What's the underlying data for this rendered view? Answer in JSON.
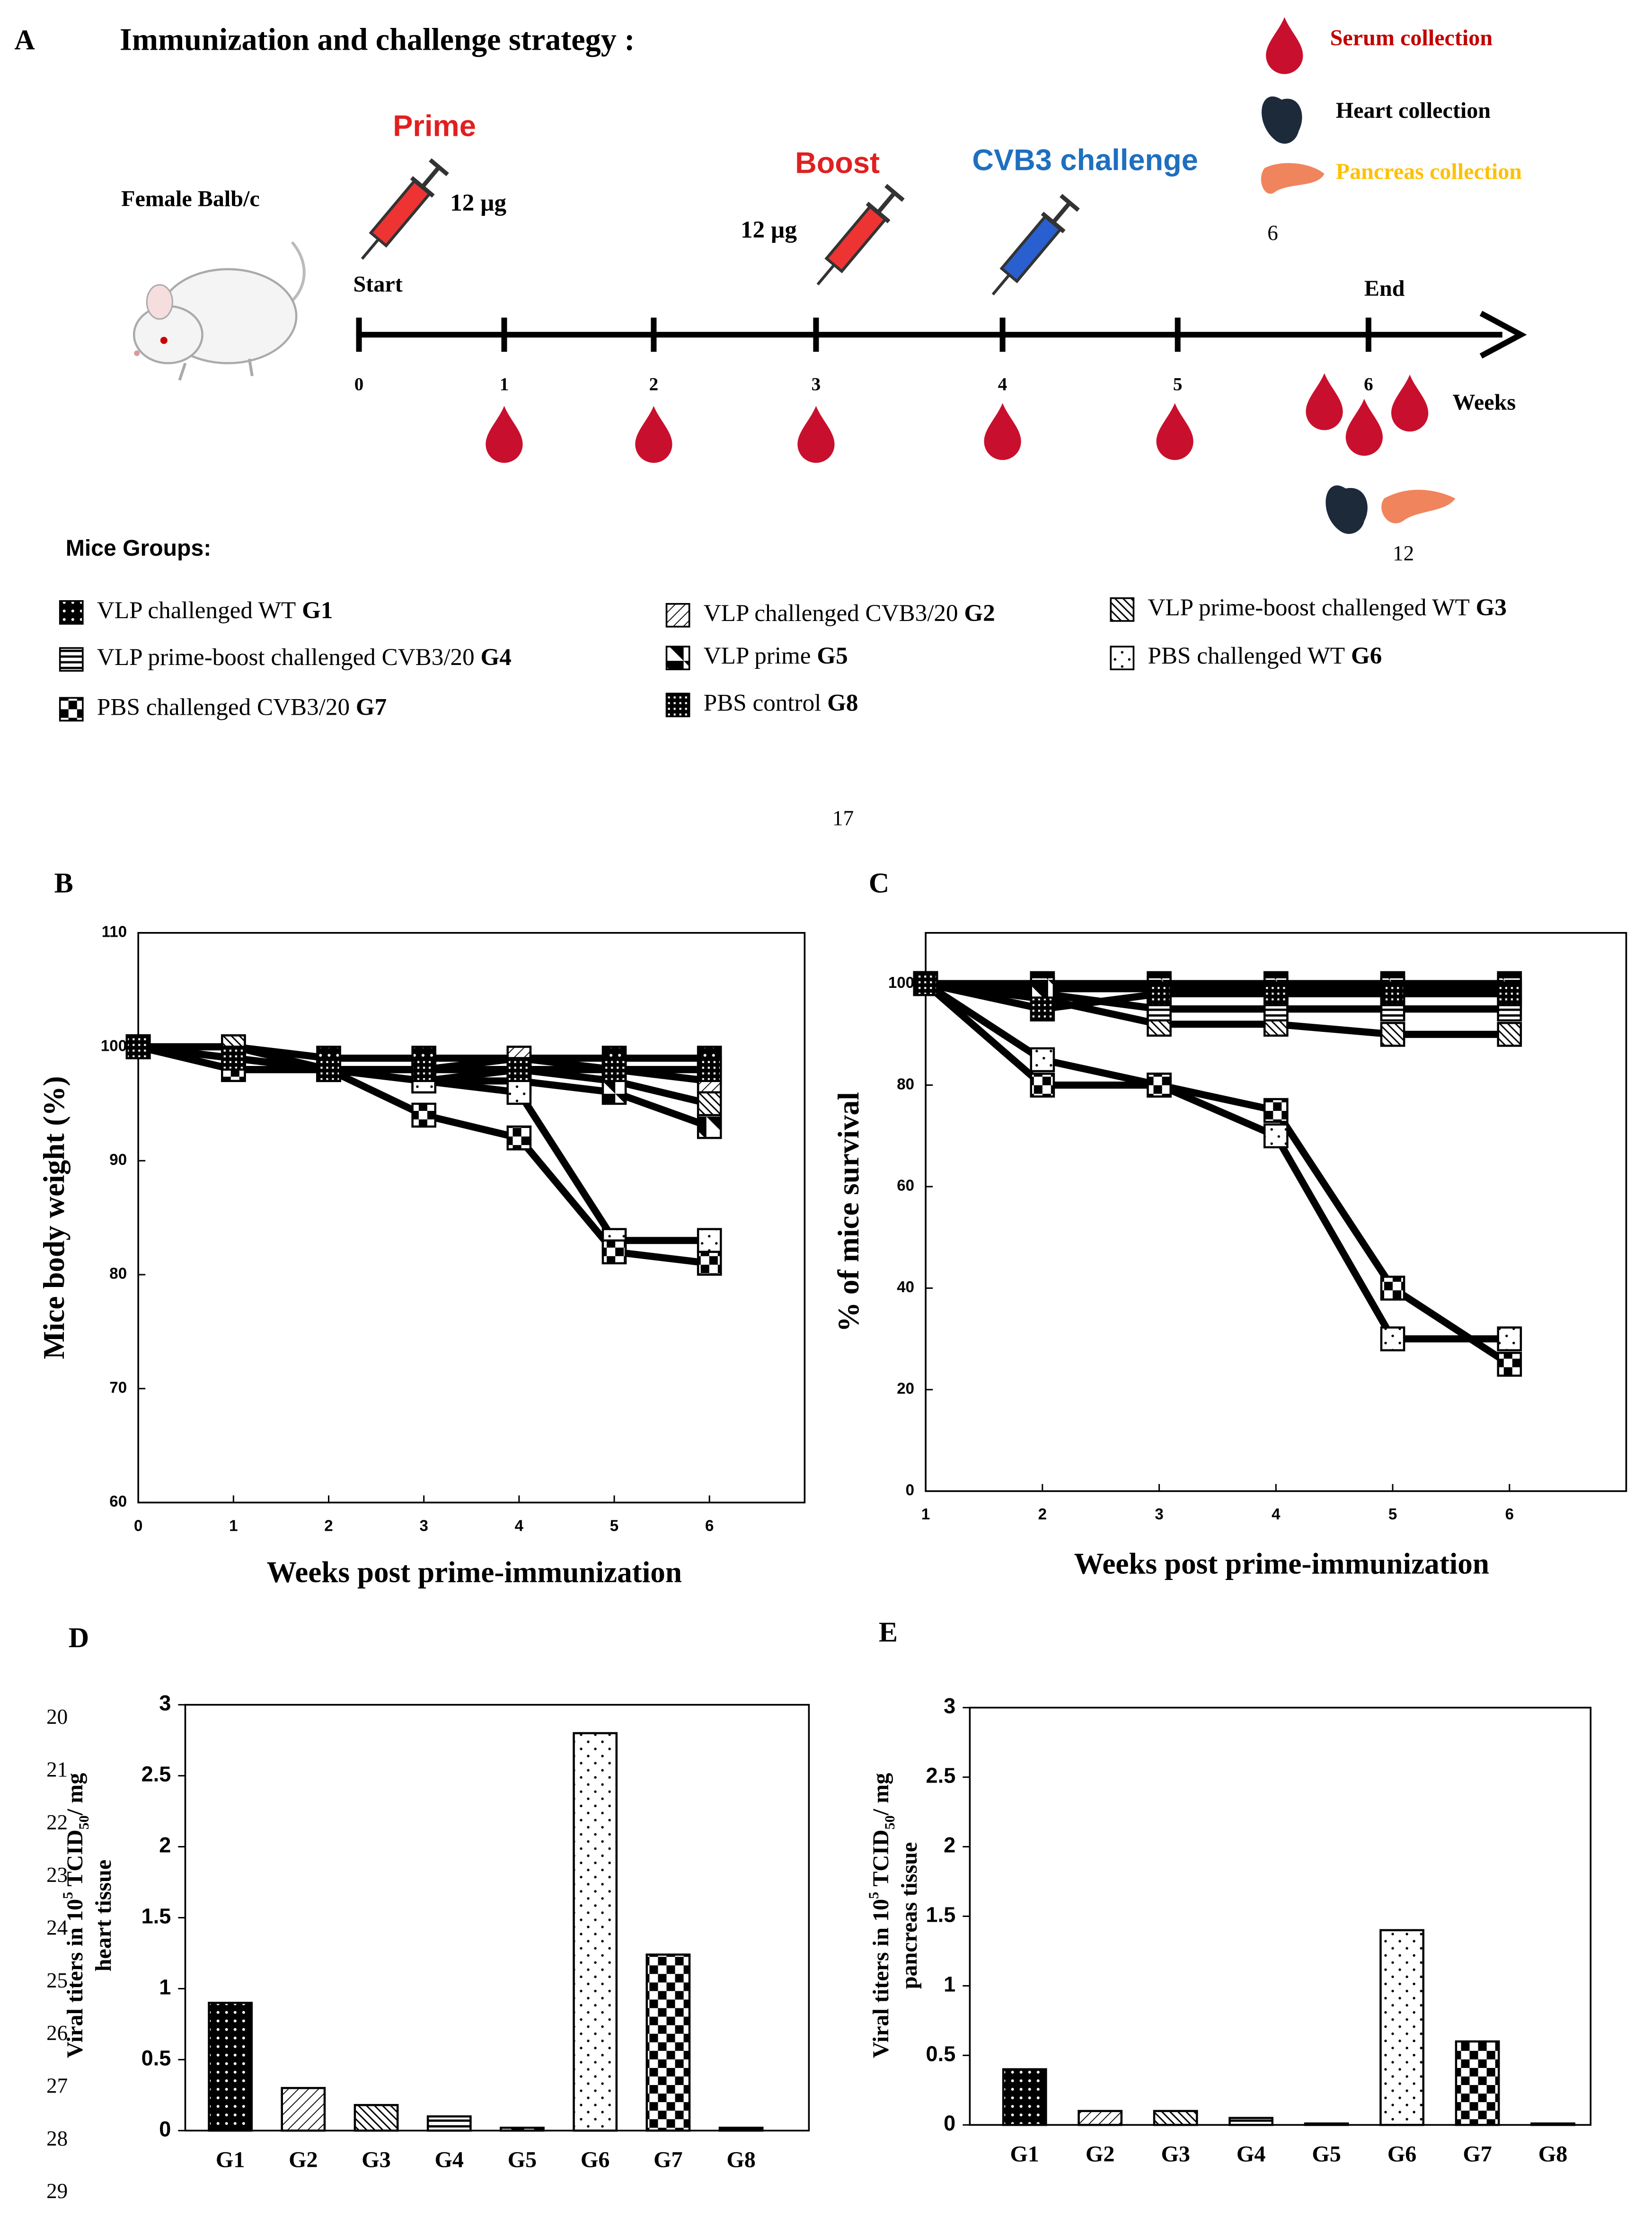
{
  "figure_a": {
    "label": "A",
    "title": "Immunization and challenge strategy :",
    "key": [
      "Serum collection",
      "Heart collection",
      "Pancreas collection"
    ],
    "key_note": "6",
    "strain": "Female Balb/c",
    "prime": {
      "label": "Prime",
      "dose": "12 µg"
    },
    "boost": {
      "label": "Boost",
      "dose": "12 µg"
    },
    "challenge": "CVB3 challenge",
    "start": "Start",
    "end": "End",
    "weeks": [
      0,
      1,
      2,
      3,
      4,
      5,
      6
    ],
    "weeks_label": "Weeks",
    "collection_note": "12",
    "groups_title": "Mice Groups:",
    "groups": [
      {
        "label": "VLP challenged WT",
        "id": "G1"
      },
      {
        "label": "VLP challenged CVB3/20",
        "id": "G2"
      },
      {
        "label": "VLP prime-boost challenged WT",
        "id": "G3"
      },
      {
        "label": "VLP prime-boost challenged CVB3/20",
        "id": "G4"
      },
      {
        "label": "VLP prime",
        "id": "G5"
      },
      {
        "label": "PBS challenged WT",
        "id": "G6"
      },
      {
        "label": "PBS challenged CVB3/20",
        "id": "G7"
      },
      {
        "label": "PBS control",
        "id": "G8"
      }
    ]
  },
  "page_number": "17",
  "line_numbers": [
    "20",
    "21",
    "22",
    "23",
    "24",
    "25",
    "26",
    "27",
    "28",
    "29"
  ],
  "chart_data": [
    {
      "type": "line",
      "label": "B",
      "xlabel": "Weeks post prime-immunization",
      "ylabel": "Mice body weight (%)",
      "x": [
        0,
        1,
        2,
        3,
        4,
        5,
        6
      ],
      "xlim": [
        0,
        7
      ],
      "xticks": [
        0,
        1,
        2,
        3,
        4,
        5,
        6
      ],
      "ylim": [
        60,
        110
      ],
      "yticks": [
        60,
        70,
        80,
        90,
        100,
        110
      ],
      "series": [
        {
          "color": "#000000",
          "values": [
            100,
            100,
            99,
            99,
            99,
            99,
            99
          ]
        },
        {
          "color": "#000000",
          "values": [
            100,
            99,
            98,
            98,
            99,
            98,
            97
          ]
        },
        {
          "color": "#000000",
          "values": [
            100,
            100,
            98,
            98,
            98,
            97,
            95
          ]
        },
        {
          "color": "#000000",
          "values": [
            100,
            99,
            98,
            97,
            98,
            98,
            98
          ]
        },
        {
          "color": "#000000",
          "values": [
            100,
            99,
            98,
            97,
            97,
            96,
            93
          ]
        },
        {
          "color": "#000000",
          "values": [
            100,
            98,
            98,
            97,
            96,
            83,
            83
          ]
        },
        {
          "color": "#000000",
          "values": [
            100,
            98,
            98,
            94,
            92,
            82,
            81
          ]
        },
        {
          "color": "#000000",
          "values": [
            100,
            99,
            98,
            98,
            98,
            98,
            98
          ]
        }
      ]
    },
    {
      "type": "line",
      "label": "C",
      "xlabel": "Weeks post prime-immunization",
      "ylabel": "% of mice survival",
      "x": [
        1,
        2,
        3,
        4,
        5,
        6
      ],
      "xlim": [
        1,
        7
      ],
      "xticks": [
        1,
        2,
        3,
        4,
        5,
        6
      ],
      "ylim": [
        0,
        110
      ],
      "yticks": [
        0,
        20,
        40,
        60,
        80,
        100
      ],
      "series": [
        {
          "color": "#000000",
          "values": [
            100,
            100,
            100,
            100,
            100,
            100
          ]
        },
        {
          "color": "#000000",
          "values": [
            100,
            98,
            95,
            95,
            95,
            95
          ]
        },
        {
          "color": "#000000",
          "values": [
            100,
            97,
            92,
            92,
            90,
            90
          ]
        },
        {
          "color": "#000000",
          "values": [
            100,
            98,
            95,
            95,
            95,
            95
          ]
        },
        {
          "color": "#000000",
          "values": [
            100,
            99,
            99,
            99,
            99,
            99
          ]
        },
        {
          "color": "#000000",
          "values": [
            100,
            85,
            80,
            70,
            30,
            30
          ]
        },
        {
          "color": "#000000",
          "values": [
            100,
            80,
            80,
            75,
            40,
            25
          ]
        },
        {
          "color": "#000000",
          "values": [
            100,
            95,
            98,
            98,
            98,
            98
          ]
        }
      ]
    },
    {
      "type": "bar",
      "label": "D",
      "ylabel": [
        "Viral titers in 10",
        "5",
        " TCID",
        "50",
        "/ mg"
      ],
      "ylabel2": "heart tissue",
      "categories": [
        "G1",
        "G2",
        "G3",
        "G4",
        "G5",
        "G6",
        "G7",
        "G8"
      ],
      "values": [
        0.9,
        0.3,
        0.18,
        0.1,
        0.02,
        2.8,
        1.24,
        0.02
      ],
      "ylim": [
        0,
        3
      ],
      "yticks": [
        0,
        0.5,
        1,
        1.5,
        2,
        2.5,
        3
      ]
    },
    {
      "type": "bar",
      "label": "E",
      "ylabel": [
        "Viral titers in 10",
        "5",
        " TCID",
        "50",
        "/ mg"
      ],
      "ylabel2": "pancreas tissue",
      "categories": [
        "G1",
        "G2",
        "G3",
        "G4",
        "G5",
        "G6",
        "G7",
        "G8"
      ],
      "values": [
        0.4,
        0.1,
        0.1,
        0.05,
        0.01,
        1.4,
        0.6,
        0.01
      ],
      "ylim": [
        0,
        3
      ],
      "yticks": [
        0,
        0.5,
        1,
        1.5,
        2,
        2.5,
        3
      ]
    }
  ]
}
